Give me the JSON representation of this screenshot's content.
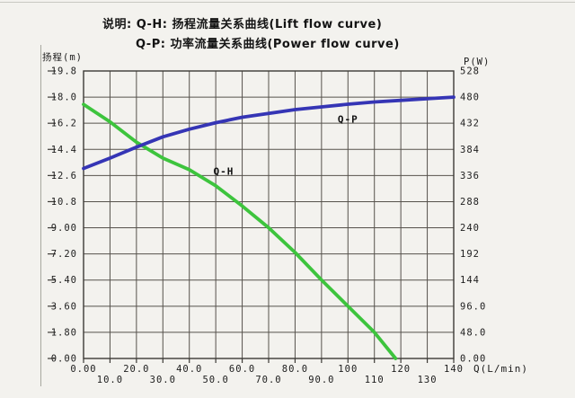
{
  "legend": {
    "line1": "说明: Q-H: 扬程流量关系曲线(Lift flow curve)",
    "line2": "Q-P: 功率流量关系曲线(Power flow curve)"
  },
  "chart_data": {
    "type": "line",
    "title": "",
    "grid": true,
    "x_axis": {
      "label": "Q(L/min)",
      "min": 0,
      "max": 140,
      "tick_step": 10,
      "tick_labels": [
        "0.00",
        "10.0",
        "20.0",
        "30.0",
        "40.0",
        "50.0",
        "60.0",
        "70.0",
        "80.0",
        "90.0",
        "100",
        "110",
        "120",
        "130",
        "140"
      ]
    },
    "y_axis_left": {
      "label": "扬程(m)",
      "min": 0,
      "max": 19.8,
      "tick_step": 1.8,
      "tick_labels": [
        "0.00",
        "1.80",
        "3.60",
        "5.40",
        "7.20",
        "9.00",
        "10.8",
        "12.6",
        "14.4",
        "16.2",
        "18.0",
        "19.8"
      ]
    },
    "y_axis_right": {
      "label": "P(W)",
      "min": 0,
      "max": 528,
      "tick_step": 48,
      "tick_labels": [
        "0.00",
        "48.0",
        "96.0",
        "144",
        "192",
        "240",
        "288",
        "336",
        "384",
        "432",
        "480",
        "528"
      ]
    },
    "series": [
      {
        "name": "Q-H",
        "axis": "left",
        "color": "#3dc43d",
        "x": [
          0,
          10,
          20,
          30,
          40,
          50,
          60,
          70,
          80,
          90,
          100,
          110,
          118
        ],
        "y": [
          17.5,
          16.3,
          14.9,
          13.8,
          13.0,
          11.9,
          10.5,
          9.0,
          7.3,
          5.4,
          3.6,
          1.8,
          0.0
        ],
        "label_pos_q": 53,
        "label_pos_v": 12.9
      },
      {
        "name": "Q-P",
        "axis": "right",
        "color": "#3535b5",
        "x": [
          0,
          10,
          20,
          30,
          40,
          50,
          60,
          70,
          80,
          90,
          100,
          110,
          120,
          130,
          140
        ],
        "y": [
          349,
          368,
          388,
          407,
          421,
          433,
          443,
          450,
          457,
          462,
          467,
          471,
          474,
          477,
          480
        ],
        "label_pos_q": 100,
        "label_pos_v": 440
      }
    ]
  }
}
